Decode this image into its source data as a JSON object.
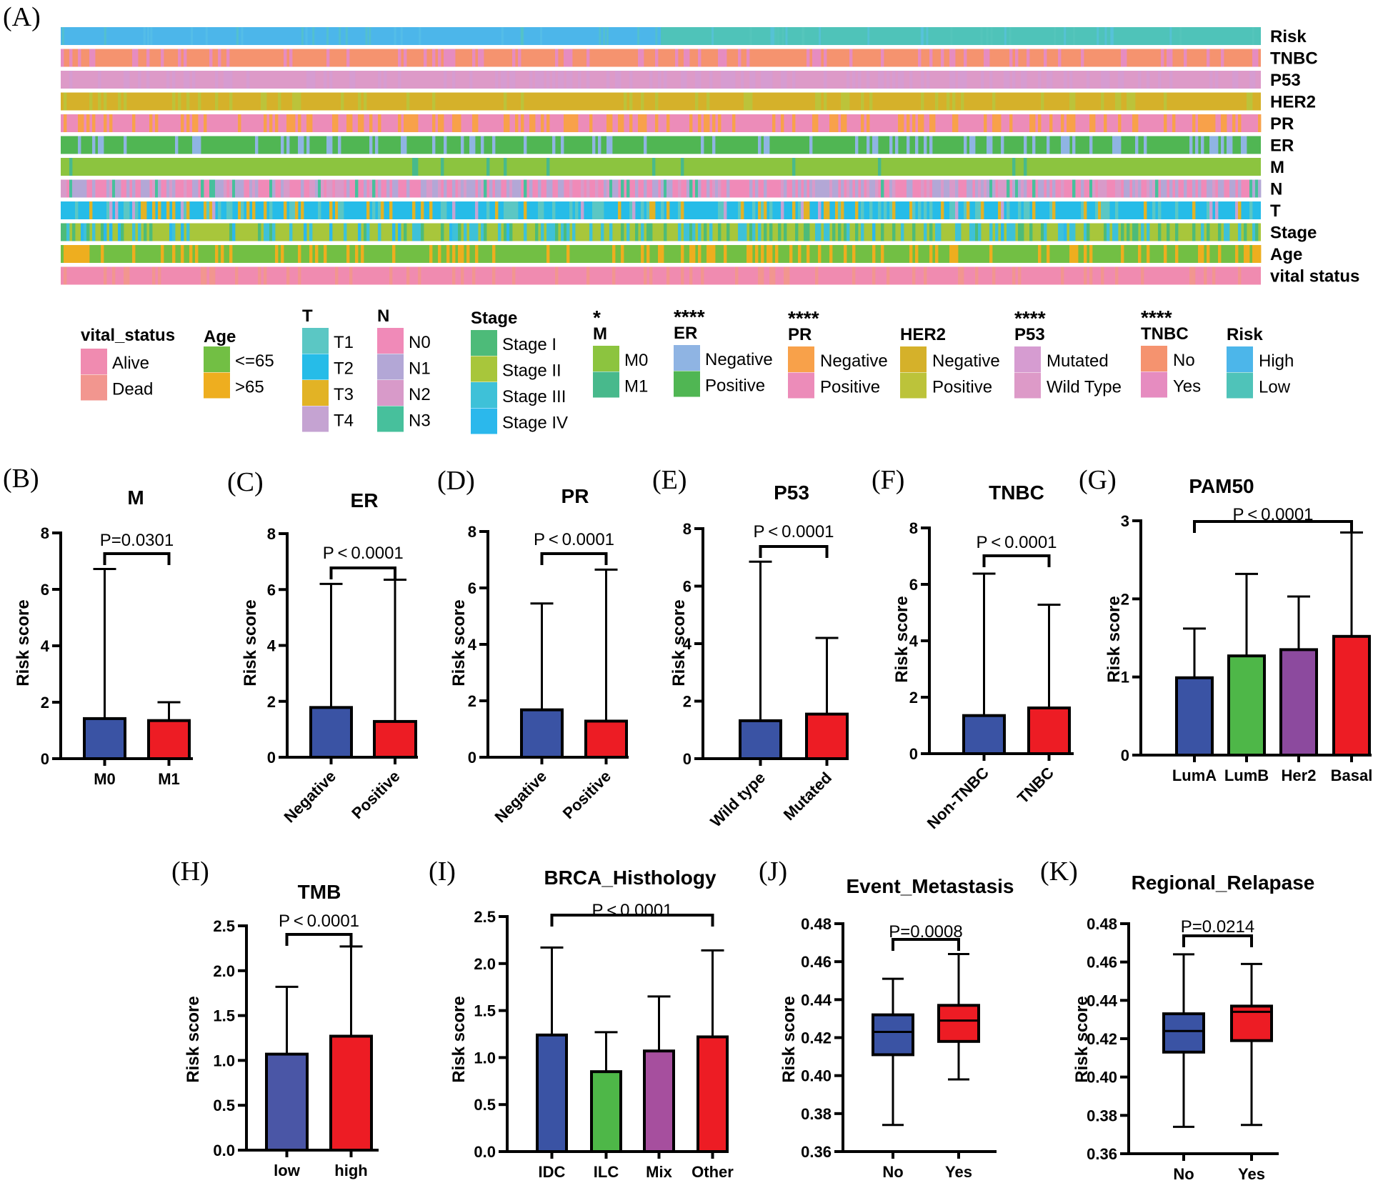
{
  "heatmap": {
    "panel": "(A)",
    "rows": [
      "Risk",
      "TNBC",
      "P53",
      "HER2",
      "PR",
      "ER",
      "M",
      "N",
      "T",
      "Stage",
      "Age",
      "vital  status"
    ]
  },
  "legend": {
    "groups": [
      {
        "title": "vital_status",
        "entries": [
          {
            "label": "Alive",
            "color": "#f08bb0"
          },
          {
            "label": "Dead",
            "color": "#f2968f"
          }
        ]
      },
      {
        "title": "Age",
        "entries": [
          {
            "label": "<=65",
            "color": "#72bf44"
          },
          {
            "label": ">65",
            "color": "#eeae1f"
          }
        ]
      },
      {
        "title": "T",
        "entries": [
          {
            "label": "T1",
            "color": "#5bc7c4"
          },
          {
            "label": "T2",
            "color": "#26bce8"
          },
          {
            "label": "T3",
            "color": "#e2b325"
          },
          {
            "label": "T4",
            "color": "#c5a3d2"
          }
        ]
      },
      {
        "title": "N",
        "entries": [
          {
            "label": "N0",
            "color": "#f08ab8"
          },
          {
            "label": "N1",
            "color": "#b3a7d6"
          },
          {
            "label": "N2",
            "color": "#d89ac9"
          },
          {
            "label": "N3",
            "color": "#47c09c"
          }
        ]
      },
      {
        "title": "Stage",
        "entries": [
          {
            "label": "Stage I",
            "color": "#4dbb79"
          },
          {
            "label": "Stage II",
            "color": "#a8c63b"
          },
          {
            "label": "Stage III",
            "color": "#3ec1d8"
          },
          {
            "label": "Stage IV",
            "color": "#2bb8ec"
          }
        ]
      },
      {
        "title": "M",
        "star": "*",
        "entries": [
          {
            "label": "M0",
            "color": "#8cc43f"
          },
          {
            "label": "M1",
            "color": "#48b98c"
          }
        ]
      },
      {
        "title": "ER",
        "star": "****",
        "entries": [
          {
            "label": "Negative",
            "color": "#8fb4e3"
          },
          {
            "label": "Positive",
            "color": "#50b653"
          }
        ]
      },
      {
        "title": "PR",
        "star": "****",
        "entries": [
          {
            "label": "Negative",
            "color": "#f8a14a"
          },
          {
            "label": "Positive",
            "color": "#ec8cb9"
          }
        ]
      },
      {
        "title": "HER2",
        "entries": [
          {
            "label": "Negative",
            "color": "#d5b12a"
          },
          {
            "label": "Positive",
            "color": "#bcc33a"
          }
        ]
      },
      {
        "title": "P53",
        "star": "****",
        "entries": [
          {
            "label": "Mutated",
            "color": "#d69cd1"
          },
          {
            "label": "Wild Type",
            "color": "#dd9ac8"
          }
        ]
      },
      {
        "title": "TNBC",
        "star": "****",
        "entries": [
          {
            "label": "No",
            "color": "#f5936f"
          },
          {
            "label": "Yes",
            "color": "#e68cc0"
          }
        ]
      },
      {
        "title": "Risk",
        "entries": [
          {
            "label": "High",
            "color": "#4cb6ea"
          },
          {
            "label": "Low",
            "color": "#4fc3b9"
          }
        ]
      }
    ]
  },
  "colors": {
    "blue": "#3a53a4",
    "red": "#ed1c24",
    "green": "#4eb748",
    "purple": "#8c4a9e",
    "magenta": "#a64f9e",
    "bar_blue2": "#4a56a6"
  },
  "chart_data": [
    {
      "panel": "(B)",
      "type": "bar",
      "title": "M",
      "ylabel": "Risk score",
      "ylim": [
        0,
        8
      ],
      "yticks": [
        "0",
        "2",
        "4",
        "6",
        "8"
      ],
      "categories": [
        "M0",
        "M1"
      ],
      "values": [
        1.42,
        1.35
      ],
      "error_upper": [
        6.72,
        2.0
      ],
      "pvalue": "P=0.0301",
      "rotated": false
    },
    {
      "panel": "(C)",
      "type": "bar",
      "title": "ER",
      "ylabel": "Risk score",
      "ylim": [
        0,
        8
      ],
      "yticks": [
        "0",
        "2",
        "4",
        "6",
        "8"
      ],
      "categories": [
        "Negative",
        "Positive"
      ],
      "values": [
        1.78,
        1.28
      ],
      "error_upper": [
        6.2,
        6.35
      ],
      "pvalue": "P < 0.0001",
      "rotated": true
    },
    {
      "panel": "(D)",
      "type": "bar",
      "title": "PR",
      "ylabel": "Risk score",
      "ylim": [
        0,
        8
      ],
      "yticks": [
        "0",
        "2",
        "4",
        "6",
        "8"
      ],
      "categories": [
        "Negative",
        "Positive"
      ],
      "values": [
        1.68,
        1.28
      ],
      "error_upper": [
        5.45,
        6.65
      ],
      "pvalue": "P < 0.0001",
      "rotated": true
    },
    {
      "panel": "(E)",
      "type": "bar",
      "title": "P53",
      "ylabel": "Risk score",
      "ylim": [
        0,
        8
      ],
      "yticks": [
        "0",
        "2",
        "4",
        "6",
        "8"
      ],
      "categories": [
        "Wild type",
        "Mutated"
      ],
      "values": [
        1.32,
        1.55
      ],
      "error_upper": [
        6.85,
        4.2
      ],
      "pvalue": "P < 0.0001",
      "rotated": true
    },
    {
      "panel": "(F)",
      "type": "bar",
      "title": "TNBC",
      "ylabel": "Risk score",
      "ylim": [
        0,
        8
      ],
      "yticks": [
        "0",
        "2",
        "4",
        "6",
        "8"
      ],
      "categories": [
        "Non-TNBC",
        "TNBC"
      ],
      "values": [
        1.35,
        1.62
      ],
      "error_upper": [
        6.38,
        5.28
      ],
      "pvalue": "P < 0.0001",
      "rotated": true
    },
    {
      "panel": "(G)",
      "type": "bar",
      "title": "PAM50",
      "ylabel": "Risk score",
      "ylim": [
        0,
        3
      ],
      "yticks": [
        "0",
        "1",
        "2",
        "3"
      ],
      "categories": [
        "LumA",
        "LumB",
        "Her2",
        "Basal"
      ],
      "values": [
        0.99,
        1.27,
        1.35,
        1.52
      ],
      "error_upper": [
        1.62,
        2.32,
        2.03,
        2.85
      ],
      "pvalue": "P < 0.0001",
      "rotated": false
    },
    {
      "panel": "(H)",
      "type": "bar",
      "title": "TMB",
      "ylabel": "Risk score",
      "ylim": [
        0,
        2.5
      ],
      "yticks": [
        "0.0",
        "0.5",
        "1.0",
        "1.5",
        "2.0",
        "2.5"
      ],
      "categories": [
        "low",
        "high"
      ],
      "values": [
        1.07,
        1.27
      ],
      "error_upper": [
        1.82,
        2.27
      ],
      "pvalue": "P < 0.0001",
      "rotated": false
    },
    {
      "panel": "(I)",
      "type": "bar",
      "title": "BRCA_Histhology",
      "ylabel": "Risk score",
      "ylim": [
        0,
        2.5
      ],
      "yticks": [
        "0.0",
        "0.5",
        "1.0",
        "1.5",
        "2.0",
        "2.5"
      ],
      "categories": [
        "IDC",
        "ILC",
        "Mix",
        "Other"
      ],
      "values": [
        1.24,
        0.85,
        1.07,
        1.22
      ],
      "error_upper": [
        2.17,
        1.27,
        1.65,
        2.14
      ],
      "pvalue": "P < 0.0001",
      "rotated": false
    },
    {
      "panel": "(J)",
      "type": "box",
      "title": "Event_Metastasis",
      "ylabel": "Risk score",
      "ylim": [
        0.36,
        0.48
      ],
      "yticks": [
        "0.36",
        "0.38",
        "0.40",
        "0.42",
        "0.44",
        "0.46",
        "0.48"
      ],
      "categories": [
        "No",
        "Yes"
      ],
      "boxes": [
        {
          "min": 0.374,
          "q1": 0.411,
          "median": 0.423,
          "q3": 0.432,
          "max": 0.451
        },
        {
          "min": 0.398,
          "q1": 0.418,
          "median": 0.429,
          "q3": 0.437,
          "max": 0.464
        }
      ],
      "pvalue": "P=0.0008"
    },
    {
      "panel": "(K)",
      "type": "box",
      "title": "Regional_Relapase",
      "ylabel": "Risk score",
      "ylim": [
        0.36,
        0.48
      ],
      "yticks": [
        "0.36",
        "0.38",
        "0.40",
        "0.42",
        "0.44",
        "0.46",
        "0.48"
      ],
      "categories": [
        "No",
        "Yes"
      ],
      "boxes": [
        {
          "min": 0.374,
          "q1": 0.413,
          "median": 0.424,
          "q3": 0.433,
          "max": 0.464
        },
        {
          "min": 0.375,
          "q1": 0.419,
          "median": 0.434,
          "q3": 0.437,
          "max": 0.459
        }
      ],
      "pvalue": "P=0.0214"
    }
  ]
}
